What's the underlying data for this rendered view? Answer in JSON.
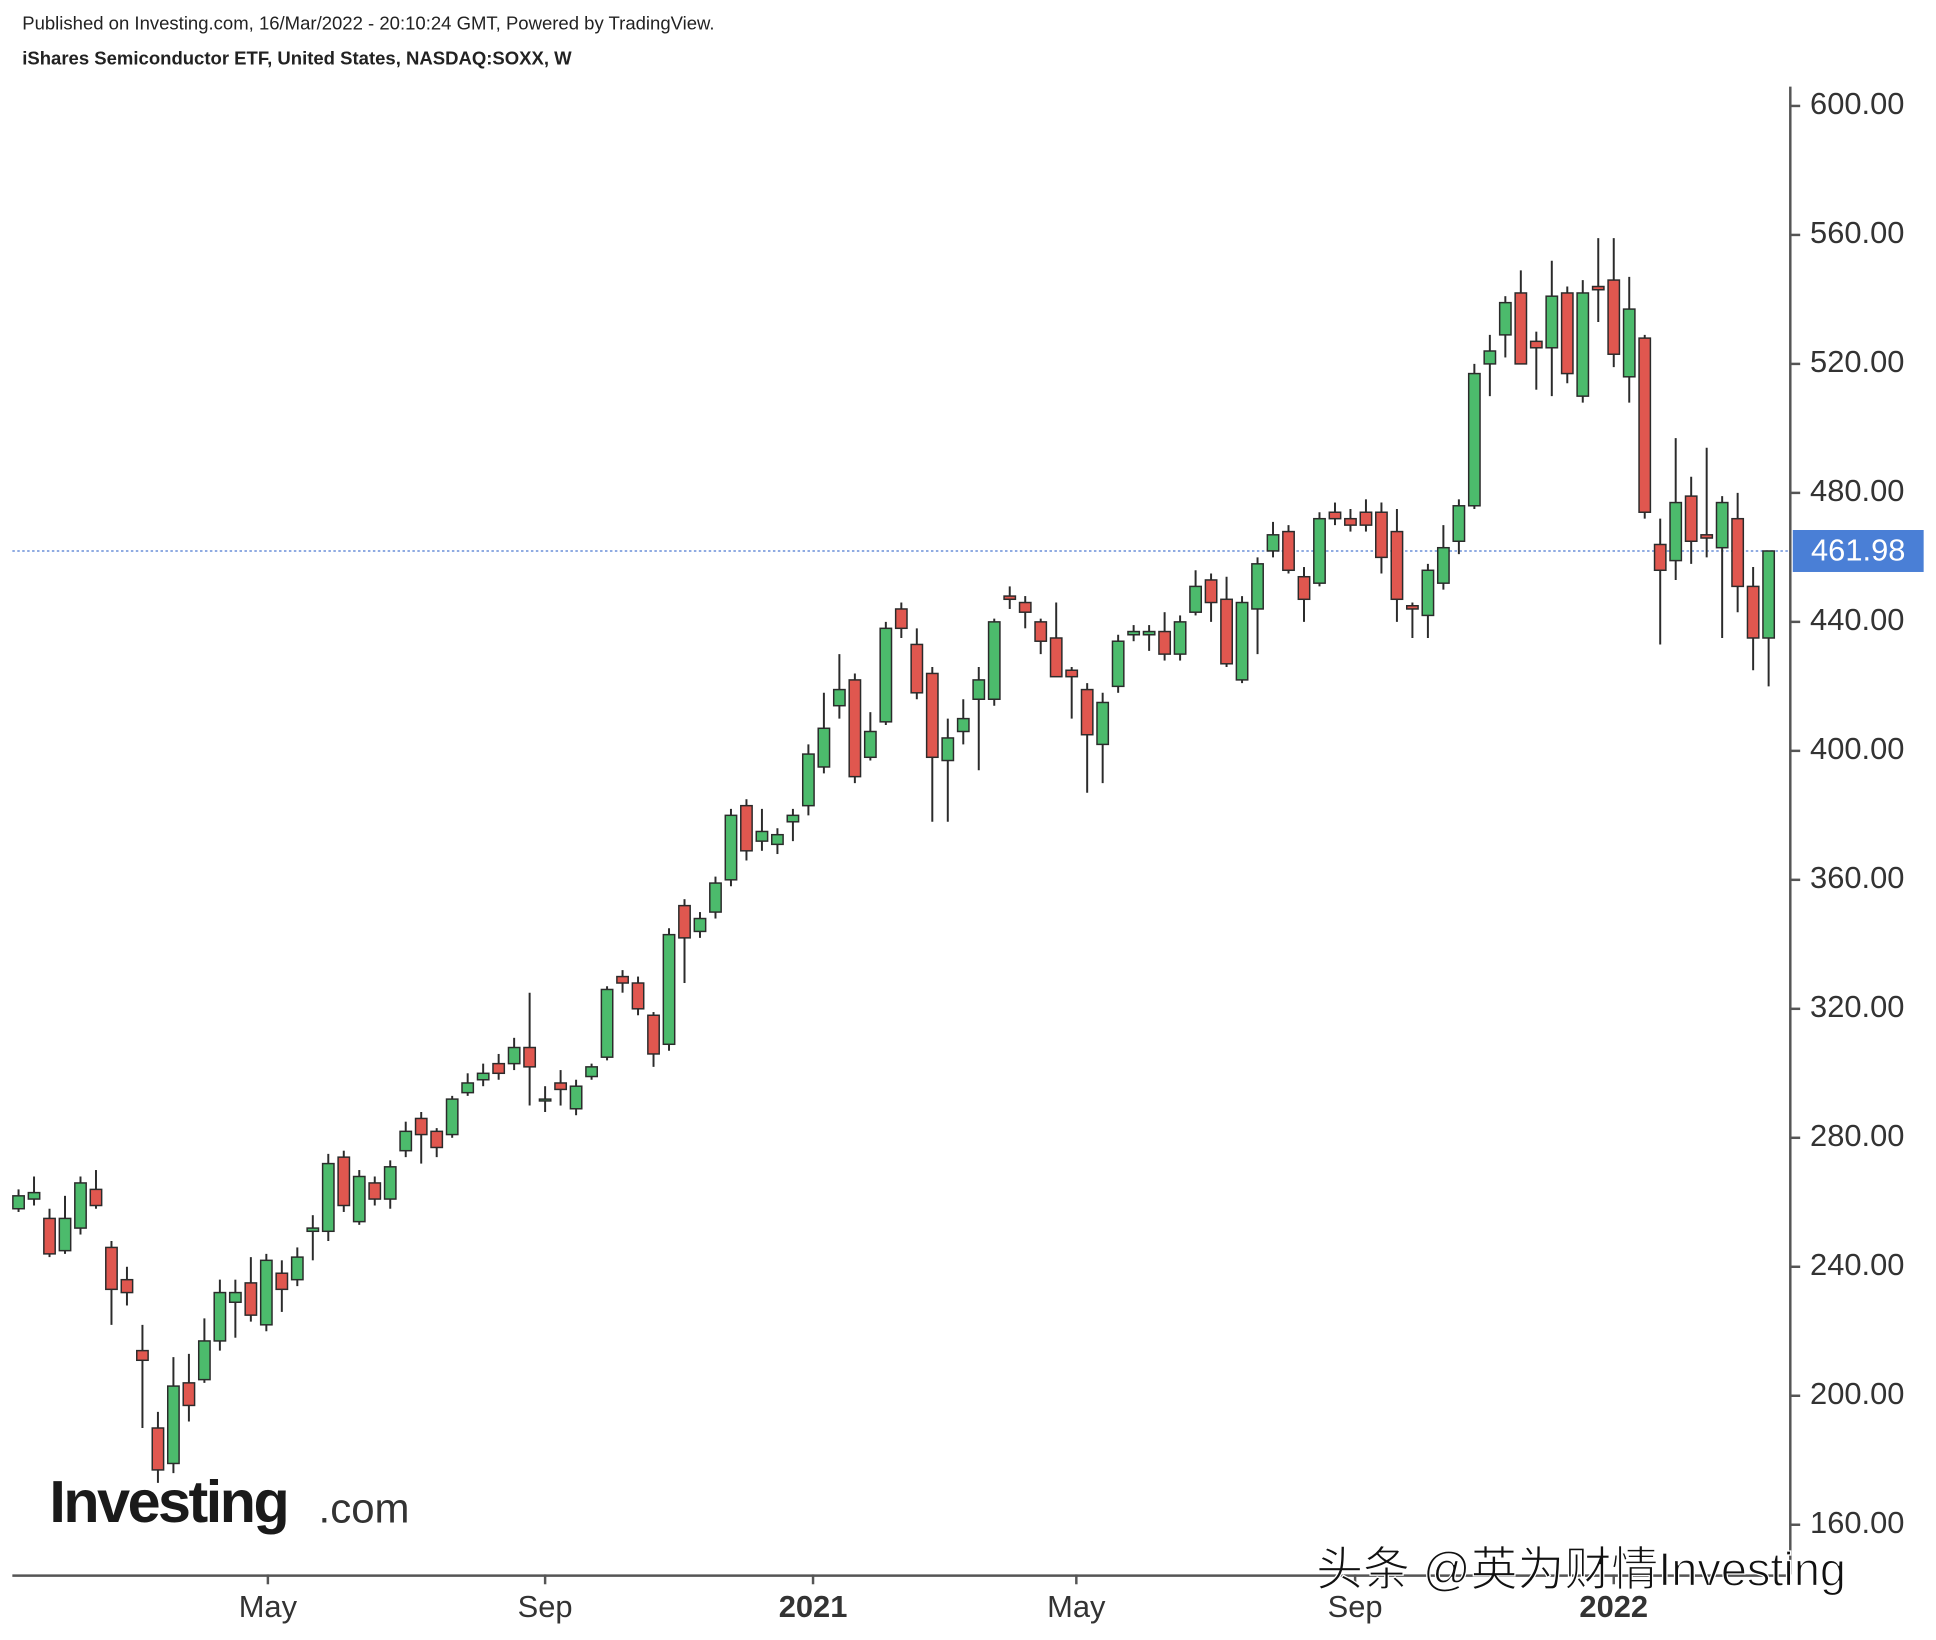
{
  "chart_data": {
    "type": "candlestick",
    "published": "Published on Investing.com, 16/Mar/2022 - 20:10:24 GMT, Powered by TradingView.",
    "title": "iShares Semiconductor ETF, United States, NASDAQ:SOXX, W",
    "logo_main": "Investing",
    "logo_suffix": ".com",
    "watermark": "头条 @英为财情Investing",
    "up_color": "#4cbb6c",
    "down_color": "#e0574f",
    "open": [
      258,
      261,
      255,
      245,
      252,
      264,
      246,
      236,
      214,
      190,
      179,
      204,
      205,
      217,
      229,
      235,
      222,
      238,
      236,
      251,
      251,
      274,
      254,
      266,
      261,
      276,
      286,
      282,
      281,
      294,
      298,
      303,
      303,
      308,
      292,
      297,
      289,
      299,
      305,
      330,
      328,
      318,
      309,
      352,
      344,
      350,
      360,
      383,
      372,
      371,
      378,
      383,
      395,
      414,
      422,
      398,
      409,
      444,
      433,
      424,
      397,
      406,
      416,
      416,
      448,
      446,
      440,
      435,
      425,
      419,
      402,
      420,
      436,
      436,
      437,
      430,
      443,
      453,
      447,
      422,
      444,
      462,
      468,
      454,
      452,
      474,
      472,
      474,
      474,
      468,
      445,
      442,
      452,
      465,
      476,
      520,
      529,
      542,
      527,
      525,
      542,
      510,
      544,
      546,
      516,
      528,
      464,
      459,
      479,
      467,
      463,
      472,
      451,
      435
    ],
    "high": [
      264,
      268,
      258,
      262,
      268,
      270,
      248,
      240,
      222,
      195,
      212,
      213,
      224,
      236,
      236,
      243,
      244,
      242,
      246,
      256,
      275,
      276,
      270,
      268,
      273,
      285,
      288,
      283,
      293,
      300,
      303,
      306,
      311,
      325,
      296,
      301,
      298,
      303,
      327,
      332,
      330,
      319,
      345,
      354,
      350,
      361,
      382,
      385,
      382,
      376,
      382,
      402,
      418,
      430,
      424,
      412,
      440,
      446,
      438,
      426,
      410,
      416,
      426,
      441,
      451,
      448,
      441,
      446,
      426,
      421,
      418,
      436,
      439,
      439,
      443,
      442,
      456,
      455,
      454,
      448,
      460,
      471,
      470,
      457,
      474,
      477,
      475,
      478,
      477,
      475,
      446,
      458,
      470,
      478,
      520,
      529,
      541,
      549,
      530,
      552,
      544,
      546,
      559,
      559,
      547,
      529,
      472,
      497,
      485,
      494,
      479,
      480,
      457,
      462
    ],
    "low": [
      257,
      259,
      243,
      244,
      250,
      258,
      222,
      228,
      190,
      173,
      176,
      192,
      204,
      214,
      218,
      223,
      220,
      226,
      234,
      242,
      248,
      257,
      253,
      259,
      258,
      274,
      272,
      274,
      280,
      293,
      296,
      298,
      301,
      290,
      288,
      290,
      287,
      298,
      304,
      325,
      318,
      302,
      307,
      328,
      342,
      348,
      358,
      366,
      369,
      368,
      372,
      380,
      393,
      410,
      390,
      397,
      408,
      435,
      416,
      378,
      378,
      402,
      394,
      414,
      444,
      438,
      430,
      423,
      410,
      387,
      390,
      418,
      434,
      431,
      428,
      428,
      442,
      440,
      426,
      421,
      430,
      460,
      455,
      440,
      451,
      470,
      468,
      468,
      455,
      440,
      435,
      435,
      450,
      461,
      475,
      510,
      522,
      520,
      512,
      510,
      514,
      508,
      533,
      519,
      508,
      472,
      433,
      453,
      458,
      460,
      435,
      443,
      425,
      420
    ],
    "close": [
      262,
      263,
      244,
      255,
      266,
      259,
      233,
      232,
      211,
      177,
      203,
      197,
      217,
      232,
      232,
      225,
      242,
      233,
      243,
      252,
      272,
      259,
      268,
      261,
      271,
      282,
      281,
      277,
      292,
      297,
      300,
      300,
      308,
      302,
      292,
      295,
      296,
      302,
      326,
      328,
      320,
      306,
      343,
      342,
      348,
      359,
      380,
      369,
      375,
      374,
      380,
      399,
      407,
      419,
      392,
      406,
      438,
      438,
      418,
      398,
      404,
      410,
      422,
      440,
      447,
      443,
      434,
      423,
      423,
      405,
      415,
      434,
      437,
      437,
      430,
      440,
      451,
      446,
      427,
      446,
      458,
      467,
      456,
      447,
      472,
      472,
      470,
      470,
      460,
      447,
      444,
      456,
      463,
      476,
      517,
      524,
      539,
      520,
      525,
      541,
      517,
      542,
      543,
      523,
      537,
      474,
      456,
      477,
      465,
      466,
      477,
      451,
      435,
      461.98
    ],
    "last_price": 461.98,
    "xlim": [
      -0.4,
      114.4
    ],
    "xticks": [
      {
        "value": 16.1,
        "label": "May"
      },
      {
        "value": 34,
        "label": "Sep"
      },
      {
        "value": 51.3,
        "label": "2021"
      },
      {
        "value": 68.3,
        "label": "May"
      },
      {
        "value": 86.3,
        "label": "Sep"
      },
      {
        "value": 103,
        "label": "2022"
      }
    ],
    "ylim": [
      144.6,
      606
    ],
    "yticks": [
      {
        "value": 160,
        "label": "160.00"
      },
      {
        "value": 200,
        "label": "200.00"
      },
      {
        "value": 240,
        "label": "240.00"
      },
      {
        "value": 280,
        "label": "280.00"
      },
      {
        "value": 320,
        "label": "320.00"
      },
      {
        "value": 360,
        "label": "360.00"
      },
      {
        "value": 400,
        "label": "400.00"
      },
      {
        "value": 440,
        "label": "440.00"
      },
      {
        "value": 480,
        "label": "480.00"
      },
      {
        "value": 520,
        "label": "520.00"
      },
      {
        "value": 560,
        "label": "560.00"
      },
      {
        "value": 600,
        "label": "600.00"
      }
    ]
  }
}
